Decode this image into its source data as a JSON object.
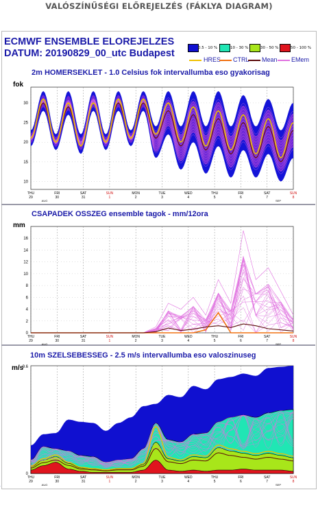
{
  "page_header": "VALÓSZÍNŰSÉGI ELŐREJELZÉS (FÁKLYA DIAGRAM)",
  "title_line1": "ECMWF ENSEMBLE ELOREJELZES",
  "title_line2": "DATUM: 20190829_00_utc  Budapest",
  "prob_legend": [
    {
      "label": "0.5 - 10 %",
      "color": "#1010d0"
    },
    {
      "label": "10 - 30 %",
      "color": "#20e6b4"
    },
    {
      "label": "30 - 50 %",
      "color": "#a8e61a"
    },
    {
      "label": "50 - 100 %",
      "color": "#e0141e"
    }
  ],
  "line_legend": [
    {
      "label": "HRES",
      "color": "#f0c000"
    },
    {
      "label": "CTRL",
      "color": "#f07010"
    },
    {
      "label": "Mean",
      "color": "#5a0a0a"
    },
    {
      "label": "EMem",
      "color": "#e070e0"
    }
  ],
  "days": [
    {
      "day": "THU",
      "date": "29",
      "weekend": false
    },
    {
      "day": "FRI",
      "date": "30",
      "weekend": false
    },
    {
      "day": "SAT",
      "date": "31",
      "weekend": false
    },
    {
      "day": "SUN",
      "date": "1",
      "weekend": true
    },
    {
      "day": "MON",
      "date": "2",
      "weekend": false
    },
    {
      "day": "TUE",
      "date": "3",
      "weekend": false
    },
    {
      "day": "WED",
      "date": "4",
      "weekend": false
    },
    {
      "day": "THU",
      "date": "5",
      "weekend": false
    },
    {
      "day": "FRI",
      "date": "6",
      "weekend": false
    },
    {
      "day": "SAT",
      "date": "7",
      "weekend": false
    },
    {
      "day": "SUN",
      "date": "8",
      "weekend": true
    }
  ],
  "month_labels": {
    "start": "AUG",
    "end": "SEP"
  },
  "panels": {
    "temp": {
      "title": "2m HOMERSEKLET - 1.0 Celsius fok intervallumba eso gyakorisag",
      "unit": "fok"
    },
    "precip": {
      "title": "CSAPADEK OSSZEG ensemble tagok - mm/12ora",
      "unit": "mm"
    },
    "wind": {
      "title": "10m SZELSEBESSEG - 2.5 m/s intervallumba eso valoszinuseg",
      "unit": "m/s",
      "max_label": "9.6"
    }
  },
  "chart_data": [
    {
      "type": "area",
      "title": "2m HOMERSEKLET - 1.0 Celsius fok intervallumba eso gyakorisag",
      "ylabel": "fok",
      "ylim": [
        8,
        34
      ],
      "yticks": [
        10,
        15,
        20,
        25,
        30
      ],
      "x": [
        "29 00",
        "29 12",
        "30 00",
        "30 12",
        "31 00",
        "31 12",
        "1 00",
        "1 12",
        "2 00",
        "2 12",
        "3 00",
        "3 12",
        "4 00",
        "4 12",
        "5 00",
        "5 12",
        "6 00",
        "6 12",
        "7 00",
        "7 12",
        "8 00",
        "8 12"
      ],
      "series": [
        {
          "name": "HRES",
          "values": [
            21,
            31,
            20,
            30,
            19,
            30,
            20,
            31,
            21,
            31,
            22,
            30,
            20,
            29,
            19,
            28,
            18,
            27,
            17,
            26,
            16,
            25
          ]
        },
        {
          "name": "Mean",
          "values": [
            21,
            30,
            20,
            29,
            19,
            30,
            20,
            30,
            21,
            30,
            21,
            28,
            19,
            27,
            18,
            26,
            17,
            25,
            16,
            24,
            15,
            23
          ]
        }
      ],
      "envelope": {
        "max": [
          23,
          33,
          22,
          33,
          22,
          33,
          22,
          33,
          23,
          33,
          24,
          33,
          24,
          33,
          24,
          33,
          24,
          32,
          24,
          31,
          23,
          30
        ],
        "min": [
          19,
          28,
          18,
          27,
          17,
          28,
          18,
          28,
          19,
          28,
          16,
          22,
          13,
          20,
          12,
          19,
          11,
          18,
          11,
          17,
          10,
          16
        ]
      }
    },
    {
      "type": "line",
      "title": "CSAPADEK OSSZEG ensemble tagok - mm/12ora",
      "ylabel": "mm",
      "ylim": [
        0,
        18
      ],
      "yticks": [
        0,
        2,
        4,
        6,
        8,
        10,
        12,
        14,
        16
      ],
      "x": [
        "29 00",
        "29 12",
        "30 00",
        "30 12",
        "31 00",
        "31 12",
        "1 00",
        "1 12",
        "2 00",
        "2 12",
        "3 00",
        "3 12",
        "4 00",
        "4 12",
        "5 00",
        "5 12",
        "6 00",
        "6 12",
        "7 00",
        "7 12",
        "8 00",
        "8 12"
      ],
      "series": [
        {
          "name": "CTRL",
          "values": [
            0,
            0,
            0,
            0,
            0,
            0,
            0,
            0,
            0,
            0,
            0,
            0,
            0,
            0,
            0.5,
            3.4,
            0,
            0,
            0,
            0,
            0,
            0
          ]
        },
        {
          "name": "Mean",
          "values": [
            0,
            0,
            0,
            0,
            0,
            0,
            0,
            0,
            0,
            0,
            0.2,
            0.8,
            0.4,
            0.6,
            1.0,
            1.2,
            0.9,
            1.5,
            1.2,
            0.7,
            0.5,
            0.3
          ]
        },
        {
          "name": "EMem max",
          "values": [
            0,
            0,
            0,
            0,
            0,
            0,
            0,
            0,
            0,
            0,
            1,
            5,
            4,
            6,
            3,
            9,
            5,
            17.3,
            9,
            11,
            7,
            3
          ]
        }
      ]
    },
    {
      "type": "area",
      "title": "10m SZELSEBESSEG - 2.5 m/s intervallumba eso valoszinuseg",
      "ylabel": "m/s",
      "ylim": [
        0,
        9.6
      ],
      "x": [
        "29 00",
        "29 12",
        "30 00",
        "30 12",
        "31 00",
        "31 12",
        "1 00",
        "1 12",
        "2 00",
        "2 12",
        "3 00",
        "3 12",
        "4 00",
        "4 12",
        "5 00",
        "5 12",
        "6 00",
        "6 12",
        "7 00",
        "7 12",
        "8 00",
        "8 12"
      ],
      "series": [
        {
          "name": "0.5 - 10 %",
          "values": [
            2.5,
            3.5,
            3.6,
            4.8,
            4.6,
            4.5,
            3.8,
            4.5,
            5.0,
            6.0,
            6.2,
            7.0,
            6.8,
            7.8,
            7.5,
            8.4,
            8.6,
            8.9,
            8.7,
            9.4,
            9.5,
            9.6
          ]
        },
        {
          "name": "10 - 30 %",
          "values": [
            1.2,
            2.4,
            2.2,
            2.0,
            1.6,
            1.5,
            1.0,
            1.2,
            1.3,
            2.2,
            4.5,
            3.0,
            2.8,
            3.5,
            3.6,
            4.6,
            5.0,
            5.2,
            5.0,
            5.4,
            5.6,
            5.7
          ]
        },
        {
          "name": "30 - 50 %",
          "values": [
            0.6,
            1.2,
            1.5,
            0.9,
            0.5,
            0.4,
            0.3,
            0.4,
            0.4,
            0.8,
            2.8,
            1.3,
            1.1,
            1.5,
            1.4,
            2.3,
            2.0,
            1.8,
            1.6,
            1.8,
            1.6,
            1.4
          ]
        },
        {
          "name": "50 - 100 %",
          "values": [
            0.3,
            0.7,
            1.0,
            0.4,
            0.2,
            0.1,
            0.1,
            0.1,
            0.1,
            0.3,
            1.2,
            0.3,
            0.2,
            0.3,
            0.2,
            0.3,
            0.3,
            0.4,
            0.3,
            0.3,
            0.3,
            0.2
          ]
        }
      ]
    }
  ]
}
